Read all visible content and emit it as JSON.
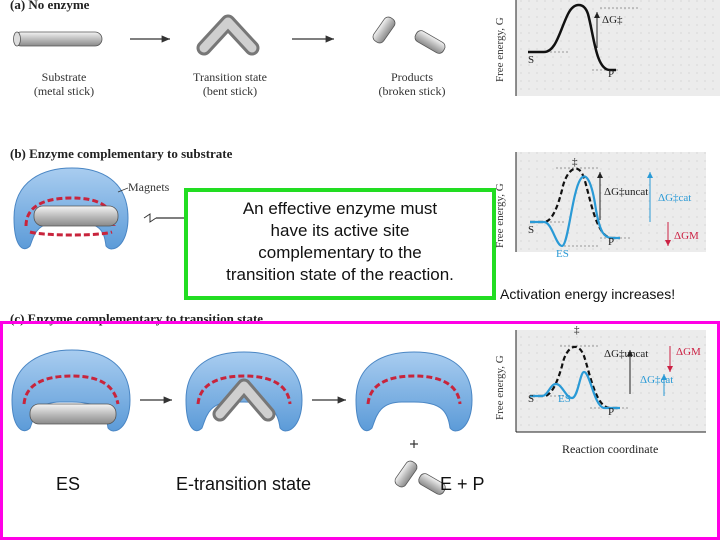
{
  "section_a": {
    "title": "(a) No enzyme",
    "substrate": "Substrate",
    "substrate_sub": "(metal stick)",
    "transition": "Transition state",
    "transition_sub": "(bent stick)",
    "products": "Products",
    "products_sub": "(broken stick)"
  },
  "section_b": {
    "title": "(b) Enzyme complementary to substrate",
    "magnets": "Magnets"
  },
  "section_c": {
    "title": "(c) Enzyme complementary to transition state"
  },
  "callout": {
    "line1": "An effective enzyme must",
    "line2": "have its active site",
    "line3": "complementary to the",
    "line4": "transition state of the reaction."
  },
  "note": "Activation energy increases!",
  "bottom_labels": {
    "es": "ES",
    "e_transition": "E-transition state",
    "ep": "E + P"
  },
  "graphs": {
    "ylabel": "Free energy, G",
    "xlabel": "Reaction coordinate",
    "s": "S",
    "p": "P",
    "es": "ES",
    "dagger": "‡",
    "dg": "ΔG‡",
    "dg_uncat": "ΔG‡uncat",
    "dg_cat": "ΔG‡cat",
    "dg_m": "ΔGM"
  },
  "colors": {
    "callout_border": "#22dd22",
    "section_c_border": "#ff00e6",
    "enzyme_blue": "#6aa9e0",
    "magnet_red": "#c8243c",
    "curve_blue": "#2a9ad6"
  }
}
